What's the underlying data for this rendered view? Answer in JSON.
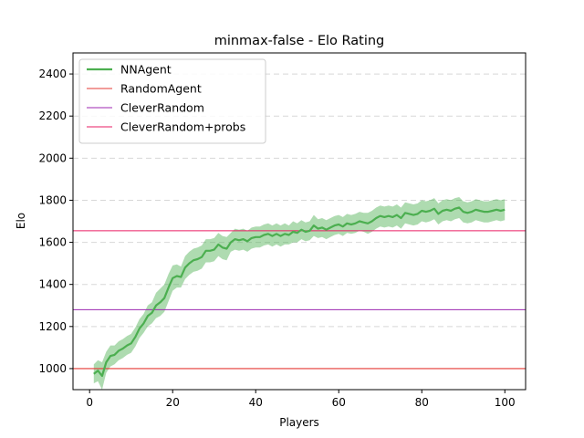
{
  "chart_data": {
    "type": "line",
    "title": "minmax-false - Elo Rating",
    "xlabel": "Players",
    "ylabel": "Elo",
    "xlim": [
      -4,
      105
    ],
    "ylim": [
      900,
      2500
    ],
    "xticks": [
      0,
      20,
      40,
      60,
      80,
      100
    ],
    "yticks": [
      1000,
      1200,
      1400,
      1600,
      1800,
      2000,
      2200,
      2400
    ],
    "grid": "horizontal dashed",
    "legend_position": "top-left",
    "series": [
      {
        "name": "NNAgent",
        "color": "#4caf50",
        "x": [
          1,
          2,
          3,
          4,
          5,
          6,
          7,
          8,
          9,
          10,
          11,
          12,
          13,
          14,
          15,
          16,
          17,
          18,
          19,
          20,
          21,
          22,
          23,
          24,
          25,
          26,
          27,
          28,
          29,
          30,
          31,
          32,
          33,
          34,
          35,
          36,
          37,
          38,
          39,
          40,
          41,
          42,
          43,
          44,
          45,
          46,
          47,
          48,
          49,
          50,
          51,
          52,
          53,
          54,
          55,
          56,
          57,
          58,
          59,
          60,
          61,
          62,
          63,
          64,
          65,
          66,
          67,
          68,
          69,
          70,
          71,
          72,
          73,
          74,
          75,
          76,
          77,
          78,
          79,
          80,
          81,
          82,
          83,
          84,
          85,
          86,
          87,
          88,
          89,
          90,
          91,
          92,
          93,
          94,
          95,
          96,
          97,
          98,
          99,
          100
        ],
        "values": [
          975,
          990,
          965,
          1030,
          1060,
          1065,
          1085,
          1095,
          1110,
          1120,
          1150,
          1190,
          1215,
          1250,
          1265,
          1300,
          1315,
          1335,
          1385,
          1430,
          1440,
          1435,
          1480,
          1500,
          1515,
          1520,
          1530,
          1560,
          1560,
          1565,
          1590,
          1575,
          1570,
          1600,
          1615,
          1610,
          1615,
          1605,
          1620,
          1625,
          1625,
          1635,
          1640,
          1630,
          1640,
          1630,
          1640,
          1635,
          1650,
          1645,
          1660,
          1650,
          1655,
          1680,
          1665,
          1670,
          1660,
          1670,
          1680,
          1685,
          1675,
          1690,
          1685,
          1690,
          1700,
          1695,
          1690,
          1700,
          1715,
          1725,
          1720,
          1725,
          1720,
          1730,
          1715,
          1740,
          1735,
          1730,
          1735,
          1750,
          1745,
          1750,
          1760,
          1735,
          1750,
          1755,
          1750,
          1760,
          1765,
          1745,
          1740,
          1745,
          1755,
          1750,
          1745,
          1745,
          1750,
          1755,
          1750,
          1755
        ],
        "band_lower": [
          930,
          940,
          900,
          980,
          1010,
          1020,
          1040,
          1050,
          1065,
          1075,
          1105,
          1145,
          1170,
          1200,
          1215,
          1240,
          1250,
          1270,
          1320,
          1370,
          1385,
          1385,
          1425,
          1445,
          1460,
          1465,
          1475,
          1505,
          1505,
          1510,
          1535,
          1520,
          1515,
          1555,
          1565,
          1560,
          1565,
          1555,
          1570,
          1575,
          1575,
          1585,
          1590,
          1580,
          1590,
          1580,
          1590,
          1590,
          1600,
          1600,
          1615,
          1605,
          1610,
          1630,
          1620,
          1625,
          1615,
          1625,
          1635,
          1640,
          1630,
          1645,
          1640,
          1645,
          1655,
          1650,
          1640,
          1650,
          1665,
          1675,
          1670,
          1675,
          1670,
          1680,
          1665,
          1690,
          1685,
          1680,
          1685,
          1700,
          1695,
          1700,
          1710,
          1685,
          1700,
          1705,
          1700,
          1710,
          1715,
          1695,
          1690,
          1695,
          1705,
          1700,
          1695,
          1695,
          1700,
          1705,
          1700,
          1705
        ],
        "band_upper": [
          1020,
          1040,
          1030,
          1080,
          1110,
          1110,
          1130,
          1140,
          1155,
          1165,
          1195,
          1235,
          1260,
          1300,
          1315,
          1360,
          1380,
          1400,
          1450,
          1490,
          1495,
          1485,
          1535,
          1555,
          1570,
          1575,
          1585,
          1615,
          1615,
          1620,
          1645,
          1630,
          1625,
          1645,
          1665,
          1660,
          1665,
          1655,
          1670,
          1675,
          1675,
          1685,
          1690,
          1680,
          1690,
          1680,
          1690,
          1680,
          1700,
          1690,
          1705,
          1695,
          1700,
          1730,
          1710,
          1715,
          1705,
          1715,
          1725,
          1730,
          1720,
          1735,
          1730,
          1735,
          1745,
          1740,
          1740,
          1750,
          1765,
          1775,
          1770,
          1775,
          1770,
          1780,
          1765,
          1790,
          1785,
          1780,
          1785,
          1800,
          1795,
          1800,
          1810,
          1785,
          1800,
          1805,
          1800,
          1810,
          1815,
          1795,
          1790,
          1795,
          1805,
          1800,
          1795,
          1795,
          1800,
          1805,
          1800,
          1805
        ]
      }
    ],
    "hlines": [
      {
        "name": "RandomAgent",
        "color": "#e53935",
        "value": 1000
      },
      {
        "name": "CleverRandom",
        "color": "#9c27b0",
        "value": 1280
      },
      {
        "name": "CleverRandom+probs",
        "color": "#e91e63",
        "value": 1655
      }
    ]
  }
}
